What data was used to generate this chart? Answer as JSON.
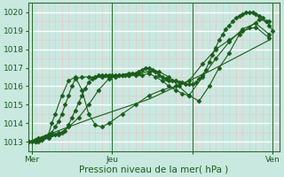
{
  "xlabel": "Pression niveau de la mer( hPa )",
  "bg_color": "#c8e8e0",
  "plot_bg_color": "#c8e8e0",
  "grid_color_major": "#ffffff",
  "grid_color_minor": "#e8c8c8",
  "line_color": "#1a5c1a",
  "marker_color": "#1a5c1a",
  "ylim": [
    1012.5,
    1020.5
  ],
  "xlim": [
    0,
    75
  ],
  "yticks": [
    1013,
    1014,
    1015,
    1016,
    1017,
    1018,
    1019,
    1020
  ],
  "xtick_positions": [
    1,
    25,
    49,
    73
  ],
  "xtick_labels": [
    "Mer",
    "Jeu",
    "",
    "Ven"
  ],
  "vline_positions": [
    1,
    25,
    49,
    73
  ],
  "lines": [
    {
      "x": [
        0,
        1,
        2,
        3,
        4,
        5,
        6,
        7,
        8,
        9,
        10,
        11,
        12,
        13,
        14,
        15,
        16,
        17,
        18,
        19,
        20,
        21,
        22,
        23,
        24,
        25,
        26,
        27,
        28,
        29,
        30,
        31,
        32,
        33,
        34,
        35,
        36,
        37,
        38,
        39,
        40,
        41,
        42,
        43,
        44,
        45,
        46,
        47,
        48,
        49,
        50,
        51,
        52,
        53,
        54,
        55,
        56,
        57,
        58,
        59,
        60,
        61,
        62,
        63,
        64,
        65,
        66,
        67,
        68,
        69,
        70,
        71,
        72,
        73
      ],
      "y": [
        1013.0,
        1013.0,
        1013.1,
        1013.2,
        1013.2,
        1013.3,
        1013.3,
        1013.4,
        1013.4,
        1013.5,
        1013.5,
        1013.6,
        1013.9,
        1014.3,
        1014.7,
        1015.1,
        1015.5,
        1015.9,
        1016.2,
        1016.4,
        1016.5,
        1016.6,
        1016.6,
        1016.6,
        1016.6,
        1016.6,
        1016.6,
        1016.6,
        1016.6,
        1016.6,
        1016.6,
        1016.7,
        1016.7,
        1016.8,
        1016.9,
        1017.0,
        1017.0,
        1016.9,
        1016.8,
        1016.6,
        1016.5,
        1016.4,
        1016.3,
        1016.3,
        1016.3,
        1016.2,
        1016.2,
        1016.1,
        1016.1,
        1016.1,
        1016.2,
        1016.4,
        1016.6,
        1016.9,
        1017.3,
        1017.7,
        1018.1,
        1018.5,
        1018.8,
        1019.1,
        1019.3,
        1019.5,
        1019.7,
        1019.8,
        1019.9,
        1020.0,
        1020.0,
        1020.0,
        1019.9,
        1019.8,
        1019.7,
        1019.5,
        1019.3,
        1019.0
      ],
      "marker": "D",
      "ms": 2.5
    },
    {
      "x": [
        0,
        2,
        4,
        6,
        7,
        8,
        9,
        10,
        11,
        12,
        13,
        14,
        16,
        18,
        20,
        22,
        24,
        26,
        28,
        30,
        32,
        34,
        36,
        38,
        40,
        42,
        44,
        46,
        48,
        52,
        56,
        60,
        64,
        68,
        72
      ],
      "y": [
        1013.0,
        1013.0,
        1013.1,
        1013.3,
        1013.5,
        1013.8,
        1014.1,
        1014.5,
        1015.0,
        1015.5,
        1016.0,
        1016.4,
        1016.5,
        1016.5,
        1016.5,
        1016.5,
        1016.5,
        1016.5,
        1016.6,
        1016.6,
        1016.6,
        1016.6,
        1016.7,
        1016.5,
        1016.3,
        1016.0,
        1015.8,
        1015.6,
        1015.5,
        1016.5,
        1017.5,
        1018.4,
        1019.1,
        1019.4,
        1018.8
      ],
      "marker": "D",
      "ms": 2.5
    },
    {
      "x": [
        0,
        3,
        6,
        9,
        12,
        15,
        18,
        21,
        24,
        27,
        30,
        33,
        36,
        39,
        42,
        45,
        48,
        51,
        54,
        57,
        60,
        63,
        66,
        69,
        72
      ],
      "y": [
        1013.0,
        1013.0,
        1013.2,
        1013.4,
        1013.8,
        1014.3,
        1015.0,
        1015.8,
        1016.4,
        1016.6,
        1016.7,
        1016.7,
        1016.8,
        1016.8,
        1016.5,
        1016.0,
        1015.5,
        1015.2,
        1016.0,
        1017.0,
        1017.8,
        1018.8,
        1019.2,
        1019.6,
        1019.5
      ],
      "marker": "D",
      "ms": 2.5
    },
    {
      "x": [
        0,
        2,
        4,
        6,
        7,
        8,
        10,
        12,
        14,
        16,
        18,
        20,
        22,
        24,
        28,
        32,
        36,
        40,
        44,
        48,
        52,
        56,
        60,
        64,
        68,
        72
      ],
      "y": [
        1013.0,
        1013.0,
        1013.1,
        1013.4,
        1014.0,
        1014.5,
        1015.5,
        1016.3,
        1016.5,
        1015.8,
        1014.5,
        1013.9,
        1013.8,
        1014.0,
        1014.5,
        1015.0,
        1015.5,
        1015.8,
        1016.0,
        1016.3,
        1017.2,
        1018.0,
        1018.5,
        1019.0,
        1019.2,
        1018.6
      ],
      "marker": "D",
      "ms": 2.5
    },
    {
      "x": [
        0,
        18,
        36,
        54,
        72
      ],
      "y": [
        1013.0,
        1014.2,
        1015.3,
        1016.8,
        1018.5
      ],
      "marker": null,
      "ms": 0
    }
  ]
}
